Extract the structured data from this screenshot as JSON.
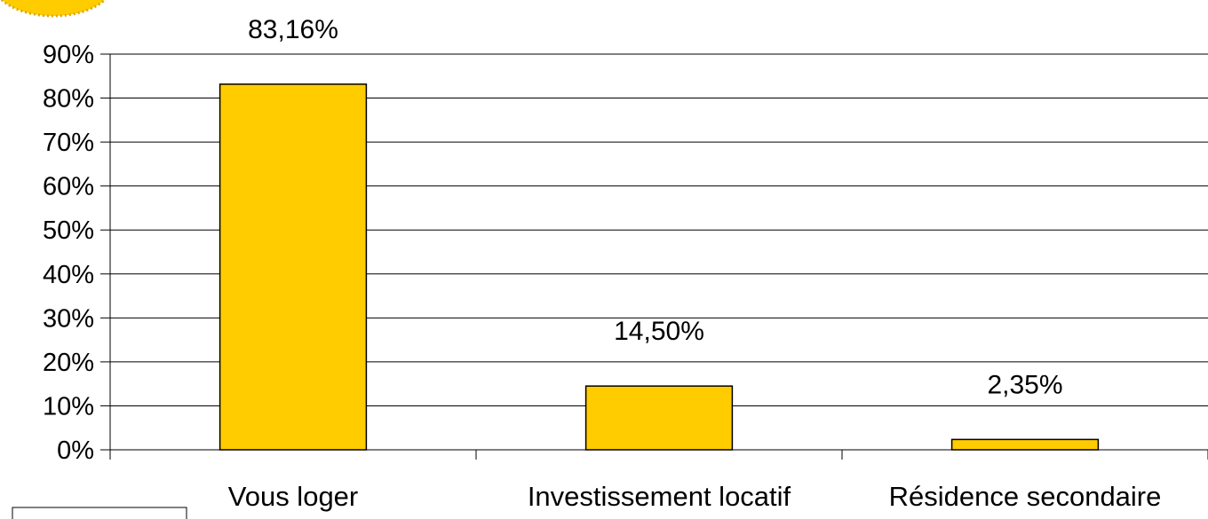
{
  "chart_data": {
    "type": "bar",
    "categories": [
      "Vous loger",
      "Investissement locatif",
      "Résidence secondaire"
    ],
    "values": [
      83.16,
      14.5,
      2.35
    ],
    "data_labels": [
      "83,16%",
      "14,50%",
      "2,35%"
    ],
    "ylim": [
      0,
      90
    ],
    "y_ticks": [
      0,
      10,
      20,
      30,
      40,
      50,
      60,
      70,
      80,
      90
    ],
    "y_tick_labels": [
      "0%",
      "10%",
      "20%",
      "30%",
      "40%",
      "50%",
      "60%",
      "70%",
      "80%",
      "90%"
    ],
    "grid": true,
    "bar_color": "#FFCC00",
    "title": "",
    "xlabel": "",
    "ylabel": ""
  }
}
